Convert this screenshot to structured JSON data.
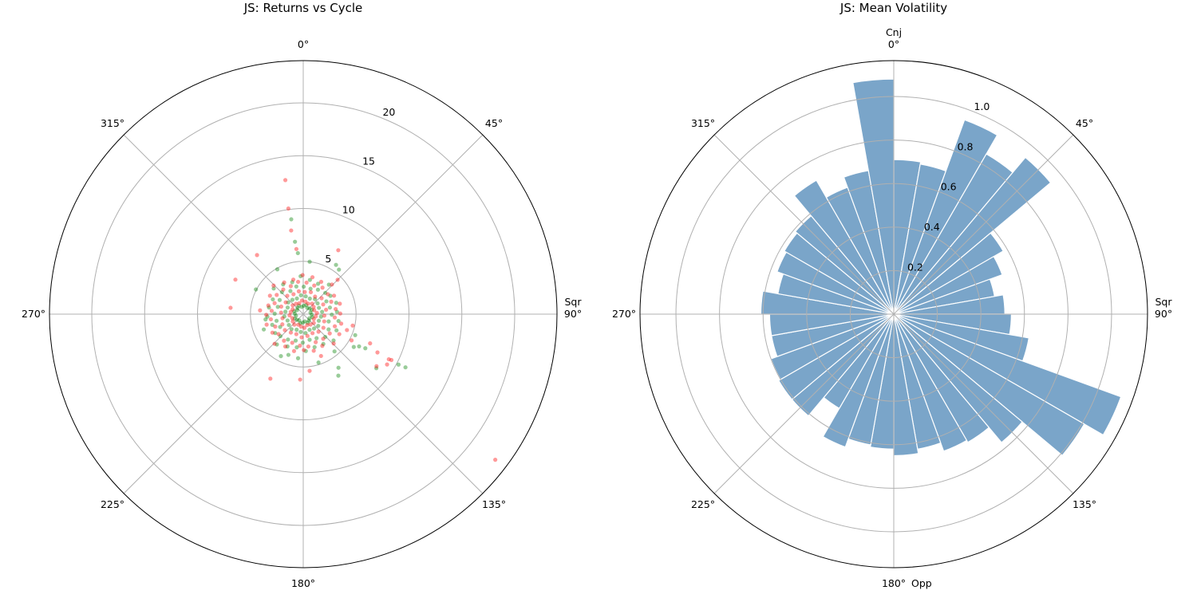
{
  "chart_data": [
    {
      "type": "scatter",
      "projection": "polar",
      "title": "JS: Returns vs Cycle",
      "theta_direction": "clockwise",
      "theta_zero": "north",
      "theta_ticks": [
        "0°",
        "45°",
        "90°",
        "135°",
        "180°",
        "225°",
        "270°",
        "315°"
      ],
      "r_ticks": [
        5,
        10,
        15,
        20
      ],
      "r_tick_labels": [
        "5",
        "10",
        "15",
        "20"
      ],
      "rlim": [
        0,
        24
      ],
      "aspect_labels": [
        {
          "text": "Sqr",
          "theta": 90
        }
      ],
      "grid": true,
      "series": [
        {
          "name": "positive",
          "color": "#008000",
          "alpha": 0.4,
          "points": [
            [
              3,
              0.8
            ],
            [
              18,
              0.9
            ],
            [
              33,
              0.7
            ],
            [
              48,
              0.8
            ],
            [
              63,
              0.9
            ],
            [
              78,
              0.7
            ],
            [
              93,
              0.8
            ],
            [
              108,
              0.9
            ],
            [
              123,
              0.7
            ],
            [
              138,
              0.8
            ],
            [
              153,
              0.9
            ],
            [
              168,
              0.7
            ],
            [
              183,
              0.8
            ],
            [
              198,
              0.9
            ],
            [
              213,
              0.7
            ],
            [
              228,
              0.8
            ],
            [
              243,
              0.9
            ],
            [
              258,
              0.7
            ],
            [
              273,
              0.8
            ],
            [
              288,
              0.9
            ],
            [
              303,
              0.7
            ],
            [
              318,
              0.8
            ],
            [
              333,
              0.9
            ],
            [
              348,
              0.7
            ],
            [
              8,
              1.7
            ],
            [
              23,
              1.6
            ],
            [
              38,
              1.8
            ],
            [
              53,
              1.7
            ],
            [
              68,
              1.6
            ],
            [
              83,
              1.8
            ],
            [
              98,
              1.7
            ],
            [
              113,
              1.6
            ],
            [
              128,
              1.8
            ],
            [
              143,
              1.7
            ],
            [
              158,
              1.6
            ],
            [
              173,
              1.8
            ],
            [
              188,
              1.7
            ],
            [
              203,
              1.6
            ],
            [
              218,
              1.8
            ],
            [
              233,
              1.7
            ],
            [
              248,
              1.6
            ],
            [
              263,
              1.8
            ],
            [
              278,
              1.7
            ],
            [
              293,
              1.6
            ],
            [
              308,
              1.8
            ],
            [
              323,
              1.7
            ],
            [
              338,
              1.6
            ],
            [
              353,
              1.8
            ],
            [
              1,
              2.6
            ],
            [
              16,
              2.5
            ],
            [
              31,
              2.7
            ],
            [
              46,
              2.9
            ],
            [
              61,
              2.5
            ],
            [
              76,
              2.6
            ],
            [
              91,
              2.7
            ],
            [
              106,
              2.5
            ],
            [
              121,
              2.8
            ],
            [
              136,
              3.0
            ],
            [
              151,
              2.6
            ],
            [
              166,
              2.5
            ],
            [
              181,
              2.7
            ],
            [
              196,
              2.6
            ],
            [
              211,
              2.8
            ],
            [
              226,
              3.0
            ],
            [
              241,
              2.5
            ],
            [
              256,
              2.6
            ],
            [
              271,
              2.7
            ],
            [
              286,
              2.5
            ],
            [
              301,
              2.6
            ],
            [
              316,
              2.9
            ],
            [
              331,
              2.5
            ],
            [
              346,
              2.7
            ],
            [
              11,
              3.3
            ],
            [
              26,
              3.2
            ],
            [
              41,
              3.7
            ],
            [
              56,
              3.1
            ],
            [
              71,
              3.3
            ],
            [
              86,
              3.2
            ],
            [
              101,
              3.4
            ],
            [
              116,
              3.5
            ],
            [
              131,
              3.8
            ],
            [
              146,
              3.4
            ],
            [
              161,
              3.3
            ],
            [
              176,
              3.5
            ],
            [
              191,
              3.2
            ],
            [
              206,
              3.4
            ],
            [
              221,
              3.8
            ],
            [
              236,
              3.2
            ],
            [
              251,
              3.1
            ],
            [
              266,
              3.4
            ],
            [
              281,
              3.3
            ],
            [
              296,
              3.2
            ],
            [
              311,
              3.7
            ],
            [
              326,
              3.4
            ],
            [
              341,
              3.2
            ],
            [
              356,
              3.6
            ],
            [
              352.8,
              9.05
            ],
            [
              353.5,
              6.9
            ],
            [
              117.5,
              10.9
            ],
            [
              117.9,
              10.2
            ],
            [
              146.7,
              6.07
            ],
            [
              150.3,
              6.7
            ],
            [
              126.5,
              8.6
            ],
            [
              118.8,
              6.7
            ],
            [
              120,
              6.1
            ],
            [
              33.6,
              5.6
            ],
            [
              38.7,
              5.4
            ],
            [
              297.6,
              5.05
            ],
            [
              262,
              3.6
            ],
            [
              248.8,
              4.0
            ],
            [
              162.5,
              4.8
            ],
            [
              186.7,
              4.2
            ],
            [
              208,
              4.5
            ],
            [
              7,
              5.0
            ],
            [
              330,
              4.9
            ],
            [
              112,
              5.3
            ],
            [
              123,
              5.7
            ],
            [
              355,
              5.8
            ],
            [
              140,
              4.6
            ],
            [
              200,
              4.1
            ]
          ]
        },
        {
          "name": "negative",
          "color": "#ff0000",
          "alpha": 0.4,
          "points": [
            [
              10,
              1.2
            ],
            [
              25,
              1.1
            ],
            [
              40,
              1.3
            ],
            [
              55,
              1.2
            ],
            [
              70,
              1.1
            ],
            [
              85,
              1.3
            ],
            [
              100,
              1.2
            ],
            [
              115,
              1.1
            ],
            [
              130,
              1.3
            ],
            [
              145,
              1.2
            ],
            [
              160,
              1.1
            ],
            [
              175,
              1.3
            ],
            [
              190,
              1.2
            ],
            [
              205,
              1.1
            ],
            [
              220,
              1.3
            ],
            [
              235,
              1.2
            ],
            [
              250,
              1.1
            ],
            [
              265,
              1.3
            ],
            [
              280,
              1.2
            ],
            [
              295,
              1.1
            ],
            [
              310,
              1.3
            ],
            [
              325,
              1.2
            ],
            [
              340,
              1.1
            ],
            [
              355,
              1.3
            ],
            [
              4,
              2.1
            ],
            [
              19,
              2.2
            ],
            [
              34,
              2.0
            ],
            [
              49,
              2.3
            ],
            [
              64,
              2.1
            ],
            [
              79,
              2.2
            ],
            [
              94,
              2.0
            ],
            [
              109,
              2.1
            ],
            [
              124,
              2.3
            ],
            [
              139,
              2.2
            ],
            [
              154,
              2.0
            ],
            [
              169,
              2.1
            ],
            [
              184,
              2.2
            ],
            [
              199,
              2.0
            ],
            [
              214,
              2.1
            ],
            [
              229,
              2.3
            ],
            [
              244,
              2.2
            ],
            [
              259,
              2.0
            ],
            [
              274,
              2.1
            ],
            [
              289,
              2.2
            ],
            [
              304,
              2.0
            ],
            [
              319,
              2.3
            ],
            [
              334,
              2.1
            ],
            [
              349,
              2.2
            ],
            [
              6,
              3.0
            ],
            [
              21,
              2.9
            ],
            [
              36,
              3.1
            ],
            [
              51,
              3.0
            ],
            [
              66,
              2.9
            ],
            [
              81,
              3.1
            ],
            [
              96,
              3.0
            ],
            [
              111,
              3.2
            ],
            [
              126,
              3.1
            ],
            [
              141,
              3.0
            ],
            [
              156,
              2.9
            ],
            [
              171,
              3.1
            ],
            [
              186,
              3.0
            ],
            [
              201,
              2.9
            ],
            [
              216,
              3.1
            ],
            [
              231,
              3.0
            ],
            [
              246,
              2.9
            ],
            [
              261,
              3.1
            ],
            [
              276,
              3.0
            ],
            [
              291,
              2.9
            ],
            [
              306,
              3.1
            ],
            [
              321,
              3.0
            ],
            [
              336,
              2.9
            ],
            [
              351,
              3.1
            ],
            [
              14,
              3.6
            ],
            [
              29,
              3.5
            ],
            [
              44,
              3.9
            ],
            [
              59,
              3.4
            ],
            [
              74,
              3.6
            ],
            [
              89,
              3.5
            ],
            [
              104,
              3.7
            ],
            [
              119,
              3.9
            ],
            [
              134,
              4.0
            ],
            [
              149,
              3.5
            ],
            [
              164,
              3.6
            ],
            [
              179,
              3.4
            ],
            [
              194,
              3.6
            ],
            [
              209,
              3.5
            ],
            [
              224,
              3.9
            ],
            [
              239,
              3.4
            ],
            [
              254,
              3.6
            ],
            [
              269,
              3.5
            ],
            [
              284,
              3.4
            ],
            [
              299,
              3.6
            ],
            [
              314,
              3.9
            ],
            [
              329,
              3.5
            ],
            [
              344,
              3.4
            ],
            [
              359,
              3.7
            ],
            [
              352.4,
              12.8
            ],
            [
              352,
              10.1
            ],
            [
              351.8,
              8.0
            ],
            [
              322,
              7.1
            ],
            [
              297,
              7.2
            ],
            [
              275,
              6.9
            ],
            [
              28.7,
              6.9
            ],
            [
              207,
              6.85
            ],
            [
              182.7,
              6.2
            ],
            [
              173.6,
              5.4
            ],
            [
              117.3,
              7.9
            ],
            [
              117.8,
              9.15
            ],
            [
              117.5,
              9.4
            ],
            [
              125.4,
              8.5
            ],
            [
              121,
              9.25
            ],
            [
              113.6,
              6.9
            ],
            [
              118.5,
              5.2
            ],
            [
              127.2,
              22.8
            ],
            [
              103,
              4.8
            ],
            [
              157,
              4.3
            ],
            [
              275,
              4.1
            ],
            [
              354,
              6.2
            ],
            [
              45,
              4.6
            ],
            [
              110,
              4.4
            ]
          ]
        }
      ]
    },
    {
      "type": "bar",
      "projection": "polar",
      "title": "JS: Mean Volatility",
      "theta_direction": "clockwise",
      "theta_zero": "north",
      "theta_ticks": [
        "0°",
        "45°",
        "90°",
        "135°",
        "180°",
        "225°",
        "270°",
        "315°"
      ],
      "r_ticks": [
        0.2,
        0.4,
        0.6,
        0.8,
        1.0
      ],
      "r_tick_labels": [
        "0.2",
        "0.4",
        "0.6",
        "0.8",
        "1.0"
      ],
      "rlim": [
        0,
        1.165
      ],
      "aspect_labels": [
        {
          "text": "Cnj",
          "theta": 0
        },
        {
          "text": "Sqr",
          "theta": 90
        },
        {
          "text": "Opp",
          "theta": 180
        }
      ],
      "grid": true,
      "bar_color": "#4682b4",
      "bar_alpha": 0.72,
      "bin_width_deg": 10,
      "bin_starts_deg": [
        0,
        10,
        20,
        30,
        40,
        50,
        60,
        70,
        80,
        90,
        100,
        110,
        120,
        130,
        140,
        150,
        160,
        170,
        180,
        190,
        200,
        210,
        220,
        230,
        240,
        250,
        260,
        270,
        280,
        290,
        300,
        310,
        320,
        330,
        340,
        350
      ],
      "values": [
        0.71,
        0.7,
        0.95,
        0.85,
        0.94,
        0.58,
        0.53,
        0.47,
        0.51,
        0.54,
        0.63,
        1.11,
        1.01,
        0.77,
        0.68,
        0.67,
        0.63,
        0.65,
        0.62,
        0.61,
        0.65,
        0.5,
        0.61,
        0.61,
        0.6,
        0.57,
        0.57,
        0.61,
        0.54,
        0.57,
        0.58,
        0.59,
        0.71,
        0.62,
        0.67,
        1.08
      ]
    }
  ]
}
